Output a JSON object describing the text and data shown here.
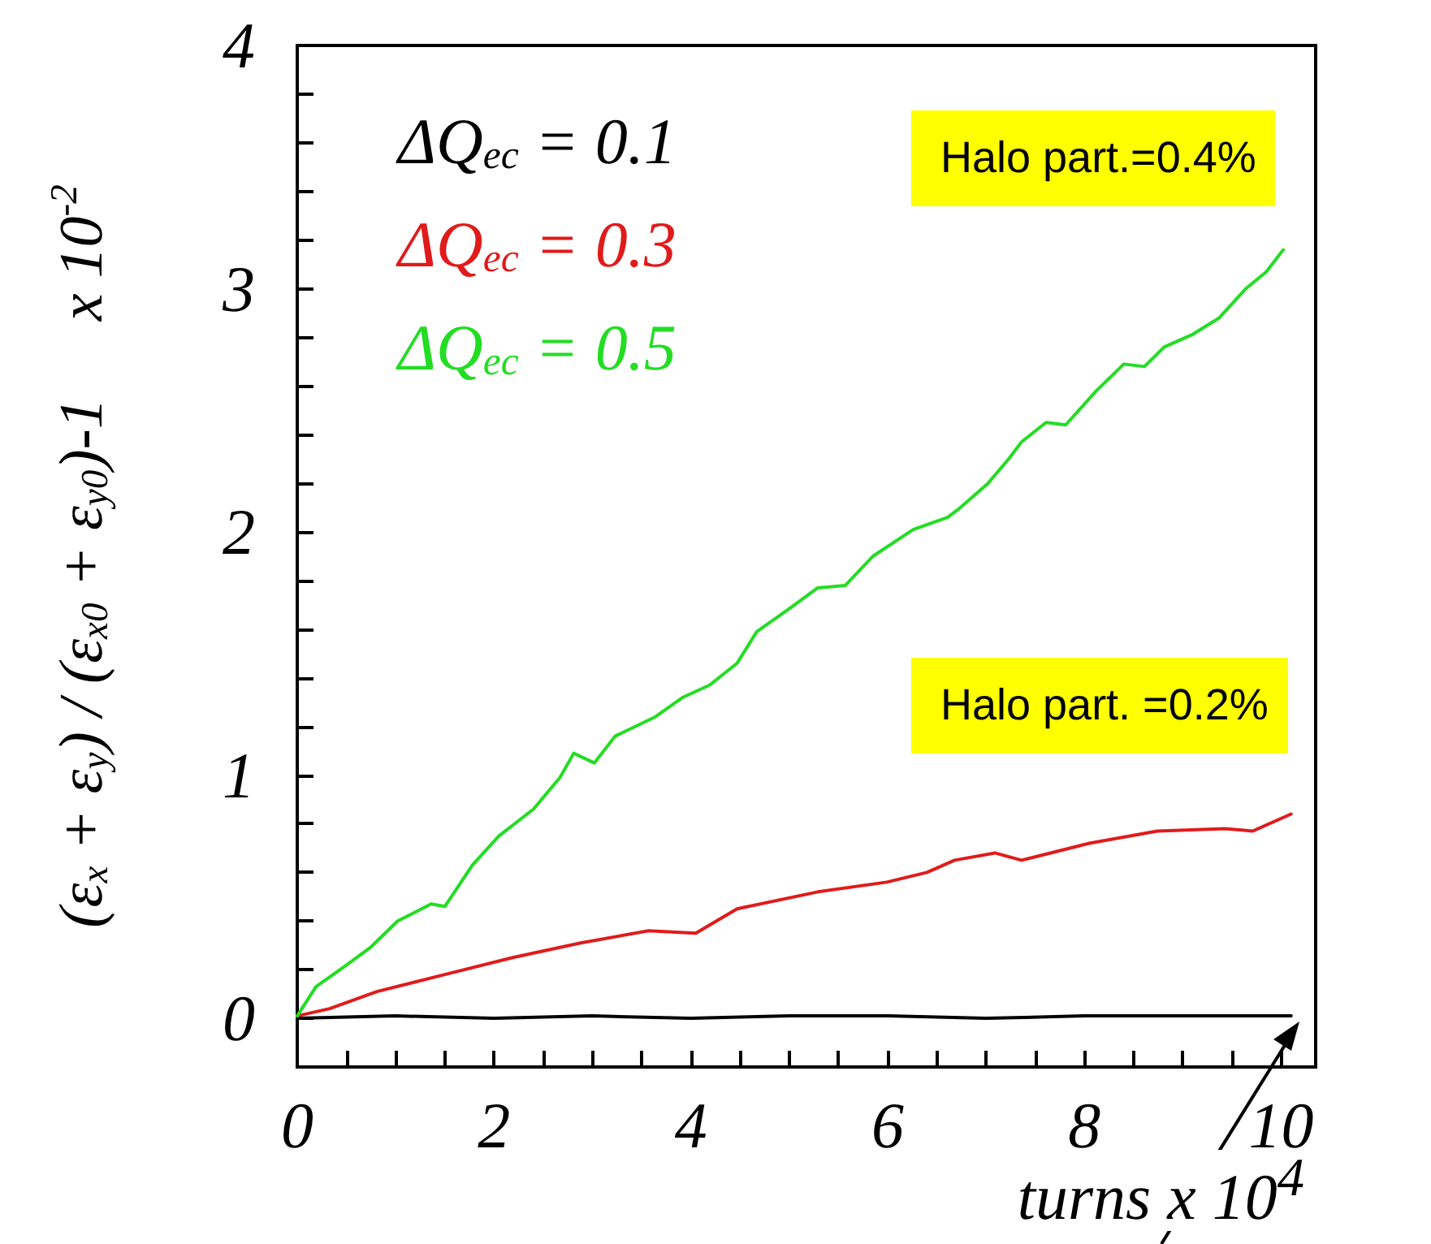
{
  "chart_data": {
    "type": "line",
    "xlabel": "turns x 10$^{4}$",
    "ylabel": "(ε$_{x}$ + ε$_{y}$) / (ε$_{x0}$ + ε$_{y0}$)-1     x 10$^{-2}$",
    "xlim": [
      0,
      10.35
    ],
    "ylim": [
      -0.2,
      4
    ],
    "xticks": [
      0,
      {
        "value": 0.5,
        "label": null
      },
      {
        "value": 1,
        "label": null
      },
      {
        "value": 1.5,
        "label": null
      },
      2,
      {
        "value": 2.5,
        "label": null
      },
      {
        "value": 3,
        "label": null
      },
      {
        "value": 3.5,
        "label": null
      },
      4,
      {
        "value": 4.5,
        "label": null
      },
      {
        "value": 5,
        "label": null
      },
      {
        "value": 5.5,
        "label": null
      },
      6,
      {
        "value": 6.5,
        "label": null
      },
      {
        "value": 7,
        "label": null
      },
      {
        "value": 7.5,
        "label": null
      },
      8,
      {
        "value": 8.5,
        "label": null
      },
      {
        "value": 9,
        "label": null
      },
      {
        "value": 9.5,
        "label": null
      },
      10
    ],
    "yticks": [
      0,
      {
        "value": 0.2,
        "label": null
      },
      {
        "value": 0.4,
        "label": null
      },
      {
        "value": 0.6,
        "label": null
      },
      {
        "value": 0.8,
        "label": null
      },
      1,
      {
        "value": 1.2,
        "label": null
      },
      {
        "value": 1.4,
        "label": null
      },
      {
        "value": 1.6,
        "label": null
      },
      {
        "value": 1.8,
        "label": null
      },
      2,
      {
        "value": 2.2,
        "label": null
      },
      {
        "value": 2.4,
        "label": null
      },
      {
        "value": 2.6,
        "label": null
      },
      {
        "value": 2.8,
        "label": null
      },
      3,
      {
        "value": 3.2,
        "label": null
      },
      {
        "value": 3.4,
        "label": null
      },
      {
        "value": 3.6,
        "label": null
      },
      {
        "value": 3.8,
        "label": null
      },
      4
    ],
    "legend": "top left",
    "grid": false,
    "marker": "none",
    "line_style": "solid",
    "annotations": [
      "Halo part.=0.4%",
      "Halo part. =0.2%"
    ],
    "series": [
      {
        "name": "ΔQ$_{ec}$ = 0.1",
        "color": "#000000",
        "x": [
          0,
          1,
          2,
          3,
          4,
          5,
          6,
          7,
          8,
          9,
          10.1
        ],
        "values": [
          0,
          0.01,
          0,
          0.01,
          0,
          0.01,
          0.01,
          0,
          0.01,
          0.01,
          0.01
        ]
      },
      {
        "name": "ΔQ$_{ec}$ = 0.3",
        "color": "#e01b1b",
        "x": [
          0,
          0.33,
          0.81,
          1.5,
          2.19,
          2.88,
          3.57,
          4.05,
          4.47,
          5.29,
          5.99,
          6.4,
          6.68,
          7.09,
          7.36,
          8.05,
          8.74,
          9.43,
          9.71,
          10.1
        ],
        "values": [
          0.01,
          0.04,
          0.11,
          0.18,
          0.25,
          0.31,
          0.36,
          0.35,
          0.45,
          0.52,
          0.56,
          0.6,
          0.65,
          0.68,
          0.65,
          0.72,
          0.77,
          0.78,
          0.77,
          0.84
        ]
      },
      {
        "name": "ΔQ$_{ec}$ = 0.5",
        "color": "#22dd22",
        "x": [
          0,
          0.19,
          0.47,
          0.74,
          1.02,
          1.36,
          1.5,
          1.78,
          2.05,
          2.4,
          2.67,
          2.81,
          3.02,
          3.23,
          3.64,
          3.92,
          4.19,
          4.47,
          4.67,
          5.02,
          5.29,
          5.57,
          5.85,
          6.26,
          6.61,
          6.74,
          7.02,
          7.23,
          7.36,
          7.61,
          7.81,
          8.12,
          8.4,
          8.61,
          8.81,
          9.09,
          9.37,
          9.64,
          9.85,
          10.02
        ],
        "values": [
          0.01,
          0.13,
          0.21,
          0.29,
          0.4,
          0.47,
          0.46,
          0.63,
          0.75,
          0.86,
          0.99,
          1.09,
          1.05,
          1.16,
          1.24,
          1.32,
          1.37,
          1.46,
          1.59,
          1.69,
          1.77,
          1.78,
          1.9,
          2.01,
          2.06,
          2.1,
          2.2,
          2.3,
          2.37,
          2.45,
          2.44,
          2.58,
          2.69,
          2.68,
          2.76,
          2.81,
          2.88,
          3.0,
          3.07,
          3.16
        ]
      }
    ]
  }
}
